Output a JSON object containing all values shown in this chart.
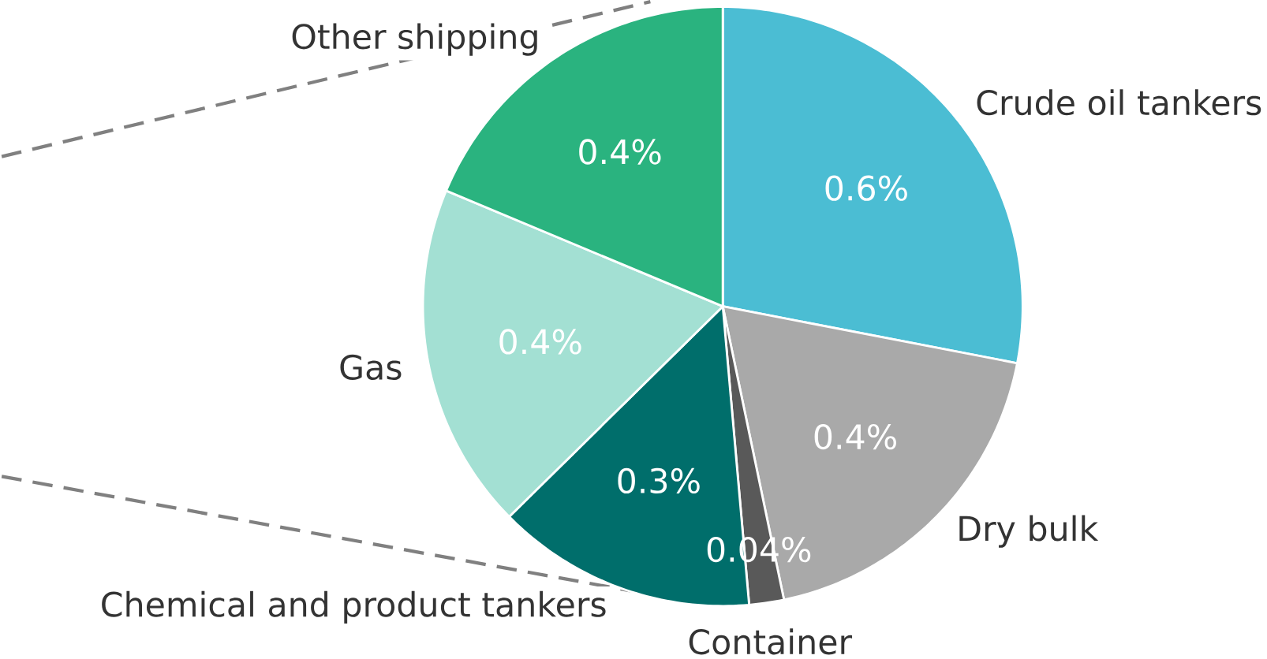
{
  "chart_data": {
    "type": "pie",
    "categories": [
      "Crude oil tankers",
      "Dry bulk",
      "Container",
      "Chemical and product tankers",
      "Gas",
      "Other shipping"
    ],
    "values": [
      0.6,
      0.4,
      0.04,
      0.3,
      0.4,
      0.4
    ],
    "value_labels": [
      "0.6%",
      "0.4%",
      "0.04%",
      "0.3%",
      "0.4%",
      "0.4%"
    ],
    "colors": [
      "#4bbdd3",
      "#a9a9a9",
      "#595959",
      "#006e6b",
      "#a3e0d3",
      "#2ab37f"
    ]
  }
}
